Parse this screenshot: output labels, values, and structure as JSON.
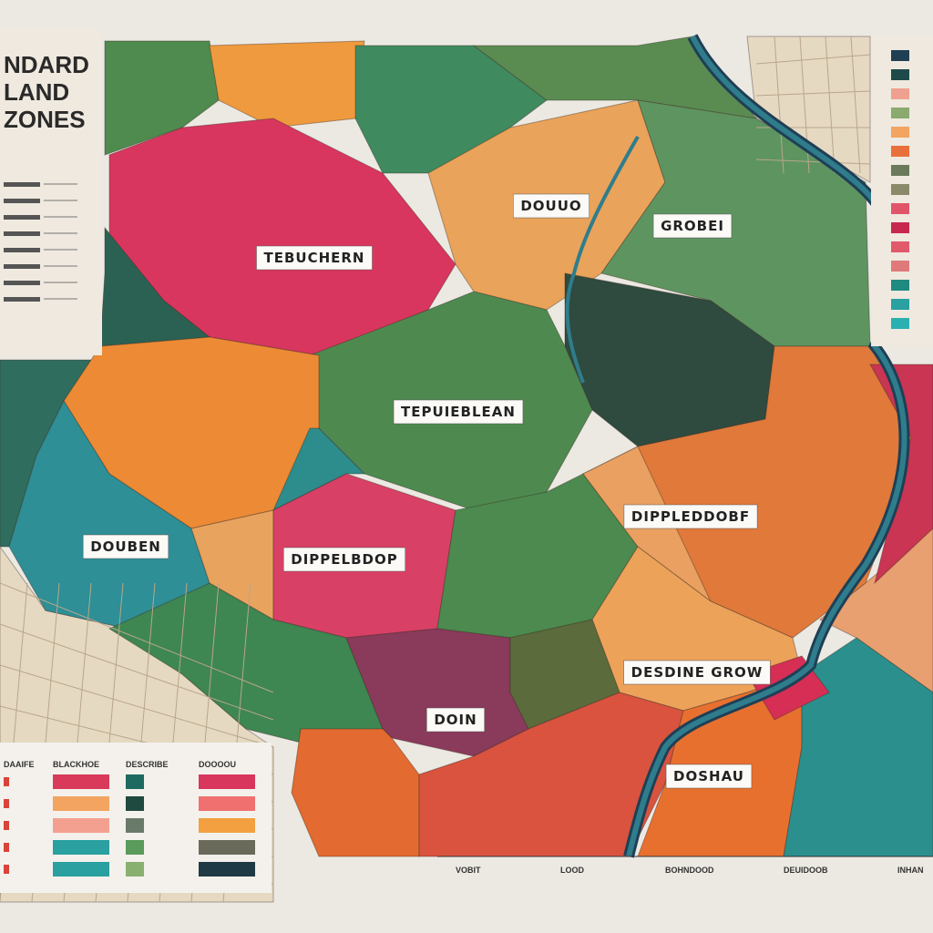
{
  "map": {
    "title": [
      "NDARD",
      "LAND",
      "ZONES"
    ],
    "regions": [
      "DOUUO",
      "GROBEI",
      "TEBUCHERN",
      "TEPUIEBLEAN",
      "DIPPLEDDOBF",
      "DOUBEN",
      "DIPPELBDOP",
      "DESDINE GROW",
      "DOIN",
      "DOSHAU"
    ],
    "legend_headers": [
      "DAAIFE",
      "BLACKHOE",
      "DESCRIBE",
      "DOOOOU"
    ],
    "scale_labels": [
      "VOBIT",
      "LOOD",
      "BOHNDOOD",
      "DEUIDOOB",
      "INHAN"
    ]
  }
}
